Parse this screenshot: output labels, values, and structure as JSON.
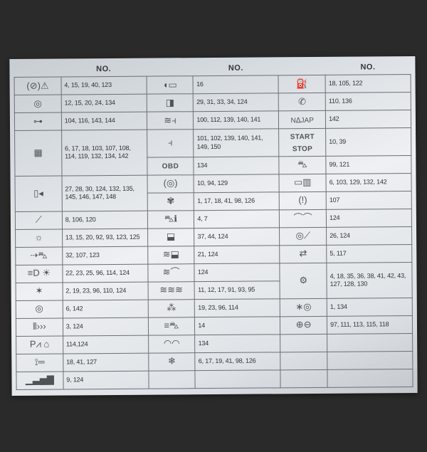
{
  "header": {
    "col_label": "NO."
  },
  "cols": [
    [
      {
        "icon": "abs-brake-warning-icon",
        "glyph": "(⊘)⚠",
        "no": "4, 15, 19, 40, 123"
      },
      {
        "icon": "steering-wheel-icon",
        "glyph": "◎",
        "no": "12, 15, 20, 24, 134"
      },
      {
        "icon": "trailer-hitch-icon",
        "glyph": "⊶",
        "no": "104, 116, 143, 144"
      },
      {
        "icon": "keypad-icon",
        "glyph": "▦",
        "no": "6, 17, 18, 103, 107, 108, 114, 119, 132, 134, 142",
        "tall": true
      },
      {
        "icon": "door-panel-icon",
        "glyph": "▯◂",
        "no": "27, 28, 30, 124, 132, 135, 145, 146, 147, 148",
        "tall": true
      },
      {
        "icon": "wrench-icon",
        "glyph": "⟋",
        "no": "8, 106, 120"
      },
      {
        "icon": "sun-gear-icon",
        "glyph": "☼",
        "no": "13, 15, 20, 92, 93, 123, 125"
      },
      {
        "icon": "car-side-icon",
        "glyph": "⇢⛍",
        "no": "32, 107, 123"
      },
      {
        "icon": "headlight-icon",
        "glyph": "≡D  ☀",
        "no": "22, 23, 25, 96, 114, 124"
      },
      {
        "icon": "light-star-icon",
        "glyph": "✶",
        "no": "2, 19, 23, 96, 110, 124"
      },
      {
        "icon": "tire-icon",
        "glyph": "◎",
        "no": "6, 142"
      },
      {
        "icon": "wifi-signal-icon",
        "glyph": "⦀›››",
        "no": "3, 124"
      },
      {
        "icon": "park-assist-home-icon",
        "glyph": "P⩘ ⌂",
        "no": "114,124"
      },
      {
        "icon": "thermometer-icon",
        "glyph": "⟟═",
        "no": "18, 41, 127"
      },
      {
        "icon": "signal-bars-icon",
        "glyph": "▁▃▅▇",
        "no": "9, 124"
      }
    ],
    [
      {
        "icon": "mirror-icon",
        "glyph": "◖▭",
        "no": "16"
      },
      {
        "icon": "door-icon",
        "glyph": "◨",
        "no": "29, 31, 33, 34, 124"
      },
      {
        "icon": "seat-heat-icon",
        "glyph": "≋⫞",
        "no": "100, 112, 139, 140, 141"
      },
      {
        "icon": "seat-icon",
        "glyph": "⫞",
        "no": "101, 102, 139, 140, 141, 149, 150"
      },
      {
        "icon": "obd-label-icon",
        "glyph": "OBD",
        "no": "134",
        "obd": true
      },
      {
        "icon": "brake-disc-icon",
        "glyph": "(◎)",
        "no": "10, 94, 129"
      },
      {
        "icon": "fan-icon",
        "glyph": "✾",
        "no": "1, 17, 18, 41, 98, 126"
      },
      {
        "icon": "car-info-icon",
        "glyph": "⛍ℹ",
        "no": "4, 7"
      },
      {
        "icon": "rear-window-icon",
        "glyph": "⬓",
        "no": "37, 44, 124"
      },
      {
        "icon": "rear-defrost-icon",
        "glyph": "≋⬓",
        "no": "21, 124"
      },
      {
        "icon": "front-defrost-icon",
        "glyph": "≋⌒",
        "no": "124"
      },
      {
        "icon": "heat-waves-icon",
        "glyph": "≋≋≋",
        "no": "11, 12, 17, 91, 93, 95"
      },
      {
        "icon": "interior-light-icon",
        "glyph": "⁂",
        "no": "19, 23, 96, 114"
      },
      {
        "icon": "car-wash-icon",
        "glyph": "≡⛍",
        "no": "14"
      },
      {
        "icon": "gauge-icon",
        "glyph": "◠◠",
        "no": "134"
      },
      {
        "icon": "snowflake-icon",
        "glyph": "❄",
        "no": "6, 17, 19, 41, 98, 126"
      }
    ],
    [
      {
        "icon": "fuel-pump-icon",
        "glyph": "⛽",
        "no": "18, 105, 122"
      },
      {
        "icon": "phone-icon",
        "glyph": "✆",
        "no": "110, 136"
      },
      {
        "icon": "najap-nav-icon",
        "glyph": "NᐃJAP",
        "no": "142",
        "small": true
      },
      {
        "icon": "start-stop-icon",
        "glyph": "START\nSTOP",
        "no": "10, 39",
        "ss": true
      },
      {
        "icon": "car-outline-icon",
        "glyph": "⛍",
        "no": "99, 121"
      },
      {
        "icon": "radio-unit-icon",
        "glyph": "▭▥",
        "no": "6, 103, 129, 132, 142"
      },
      {
        "icon": "tpms-icon",
        "glyph": "(!)",
        "no": "107"
      },
      {
        "icon": "wiper-icon",
        "glyph": "⌒⌒",
        "no": "124"
      },
      {
        "icon": "steering-column-icon",
        "glyph": "◎⟋",
        "no": "26, 124"
      },
      {
        "icon": "transfer-arrows-icon",
        "glyph": "⇄",
        "no": "5, 117"
      },
      {
        "icon": "engine-check-icon",
        "glyph": "⚙",
        "no": "4, 18, 35, 36, 38, 41, 42, 43, 127, 128, 130",
        "tall": true
      },
      {
        "icon": "traction-control-icon",
        "glyph": "∗◎",
        "no": "1, 134"
      },
      {
        "icon": "battery-terminals-icon",
        "glyph": "⊕⊖",
        "no": "97, 111, 113, 115, 118"
      },
      {
        "icon": "",
        "glyph": "",
        "no": ""
      },
      {
        "icon": "",
        "glyph": "",
        "no": ""
      }
    ]
  ]
}
